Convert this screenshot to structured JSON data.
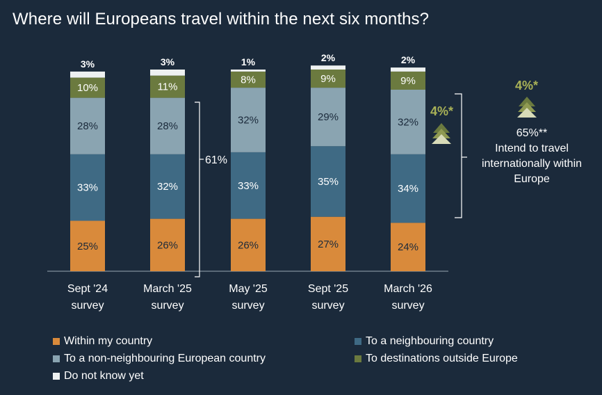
{
  "title": "Where will Europeans travel within the next six months?",
  "colors": {
    "background": "#1b2a3b",
    "within_country": "#d98a3b",
    "neighbouring": "#3f6a84",
    "non_neighbouring_europe": "#8aa4b1",
    "outside_europe": "#6b7a3f",
    "do_not_know": "#eef1f1",
    "accent": "#a9b257"
  },
  "chart_data": {
    "type": "bar",
    "stacked": true,
    "categories": [
      "Sept '24 survey",
      "March '25 survey",
      "May '25 survey",
      "Sept '25 survey",
      "March '26 survey"
    ],
    "category_lines": [
      [
        "Sept '24",
        "survey"
      ],
      [
        "March '25",
        "survey"
      ],
      [
        "May '25",
        "survey"
      ],
      [
        "Sept '25",
        "survey"
      ],
      [
        "March '26",
        "survey"
      ]
    ],
    "series": [
      {
        "name": "Within my country",
        "color": "#d98a3b",
        "values": [
          25,
          26,
          26,
          27,
          24
        ],
        "label_dark": true
      },
      {
        "name": "To a neighbouring country",
        "color": "#3f6a84",
        "values": [
          33,
          32,
          33,
          35,
          34
        ],
        "label_dark": false
      },
      {
        "name": "To a non-neighbouring European country",
        "color": "#8aa4b1",
        "values": [
          28,
          28,
          32,
          29,
          32
        ],
        "label_dark": true
      },
      {
        "name": "To destinations outside Europe",
        "color": "#6b7a3f",
        "values": [
          10,
          11,
          8,
          9,
          9
        ],
        "label_dark": false
      },
      {
        "name": "Do not know yet",
        "color": "#eef1f1",
        "values": [
          3,
          3,
          1,
          2,
          2
        ],
        "label_dark": true
      }
    ],
    "ylim": [
      0,
      100
    ],
    "bracket_label": "61%",
    "bracket_category": 1,
    "legend": [
      "Within my country",
      "To a neighbouring country",
      "To a non-neighbouring European country",
      "To destinations outside Europe",
      "Do not know yet"
    ]
  },
  "annotations": {
    "outside_badge": "4%*",
    "intl_badge": "4%*",
    "intl_percent": "65%**",
    "intl_text": "Intend to travel internationally within Europe"
  }
}
